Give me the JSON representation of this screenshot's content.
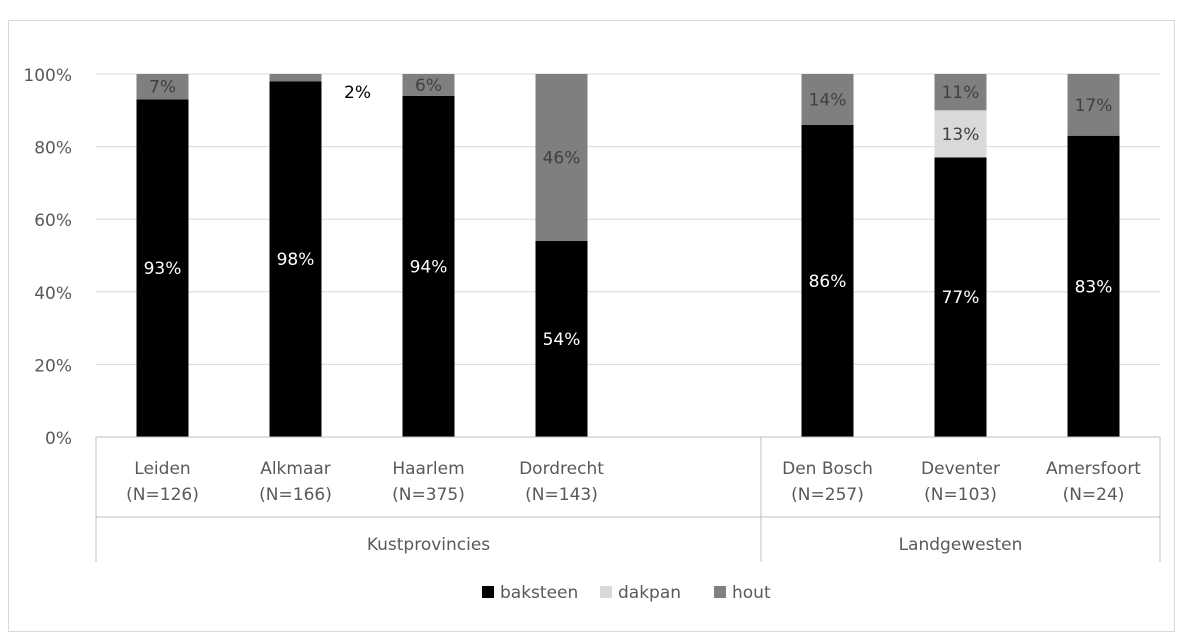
{
  "chart_data": {
    "type": "bar",
    "stacked": true,
    "title": "",
    "categories": [
      {
        "label": "Leiden",
        "sublabel": "(N=126)"
      },
      {
        "label": "Alkmaar",
        "sublabel": "(N=166)"
      },
      {
        "label": "Haarlem",
        "sublabel": "(N=375)"
      },
      {
        "label": "Dordrecht",
        "sublabel": "(N=143)"
      },
      {
        "label": "",
        "sublabel": ""
      },
      {
        "label": "Den Bosch",
        "sublabel": "(N=257)"
      },
      {
        "label": "Deventer",
        "sublabel": "(N=103)"
      },
      {
        "label": "Amersfoort",
        "sublabel": "(N=24)"
      }
    ],
    "groups": [
      {
        "name": "Kustprovincies",
        "start": 0,
        "end": 4
      },
      {
        "name": "Landgewesten",
        "start": 5,
        "end": 7
      }
    ],
    "series": [
      {
        "name": "baksteen",
        "color": "#000000",
        "label_color": "#ffffff",
        "values": [
          93,
          98,
          94,
          54,
          null,
          86,
          77,
          83
        ],
        "labels": [
          "93%",
          "98%",
          "94%",
          "54%",
          "",
          "86%",
          "77%",
          "83%"
        ]
      },
      {
        "name": "dakpan",
        "color": "#d9d9d9",
        "label_color": "#404040",
        "values": [
          0,
          0,
          0,
          0,
          null,
          0,
          13,
          0
        ],
        "labels": [
          "",
          "",
          "",
          "",
          "",
          "",
          "13%",
          ""
        ]
      },
      {
        "name": "hout",
        "color": "#7f7f7f",
        "label_color": "#404040",
        "values": [
          7,
          2,
          6,
          46,
          null,
          14,
          11,
          17
        ],
        "labels": [
          "7%",
          "2%",
          "6%",
          "46%",
          "",
          "14%",
          "11%",
          "17%"
        ]
      }
    ],
    "ylim": [
      0,
      100
    ],
    "yticks": [
      "0%",
      "20%",
      "40%",
      "60%",
      "80%",
      "100%"
    ],
    "grid": true,
    "legend_position": "bottom"
  }
}
